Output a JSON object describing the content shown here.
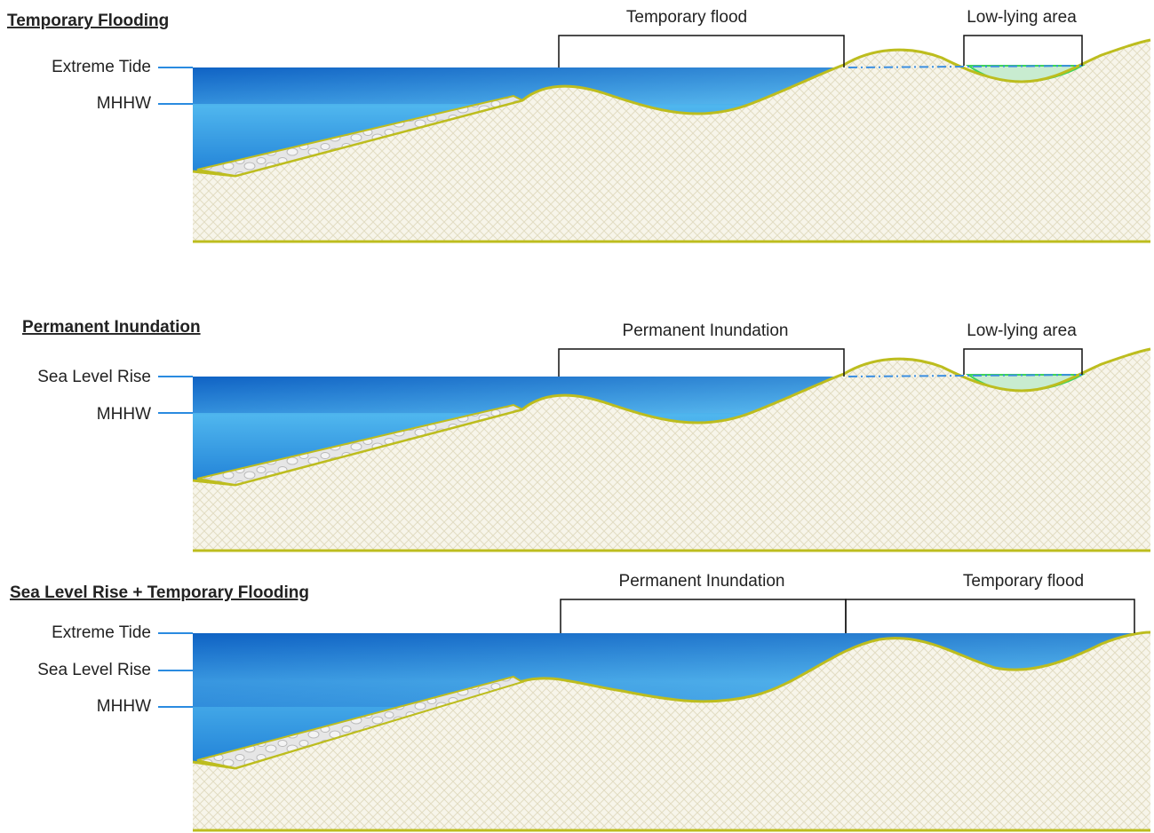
{
  "panels": [
    {
      "title": "Temporary Flooding",
      "levels": [
        "Extreme Tide",
        "MHHW"
      ],
      "zones": [
        "Temporary flood",
        "Low-lying area"
      ]
    },
    {
      "title": "Permanent Inundation",
      "levels": [
        "Sea Level Rise",
        "MHHW"
      ],
      "zones": [
        "Permanent Inundation",
        "Low-lying area"
      ]
    },
    {
      "title": "Sea Level Rise + Temporary Flooding",
      "levels": [
        "Extreme Tide",
        "Sea Level Rise",
        "MHHW"
      ],
      "zones": [
        "Permanent Inundation",
        "Temporary flood"
      ]
    }
  ]
}
